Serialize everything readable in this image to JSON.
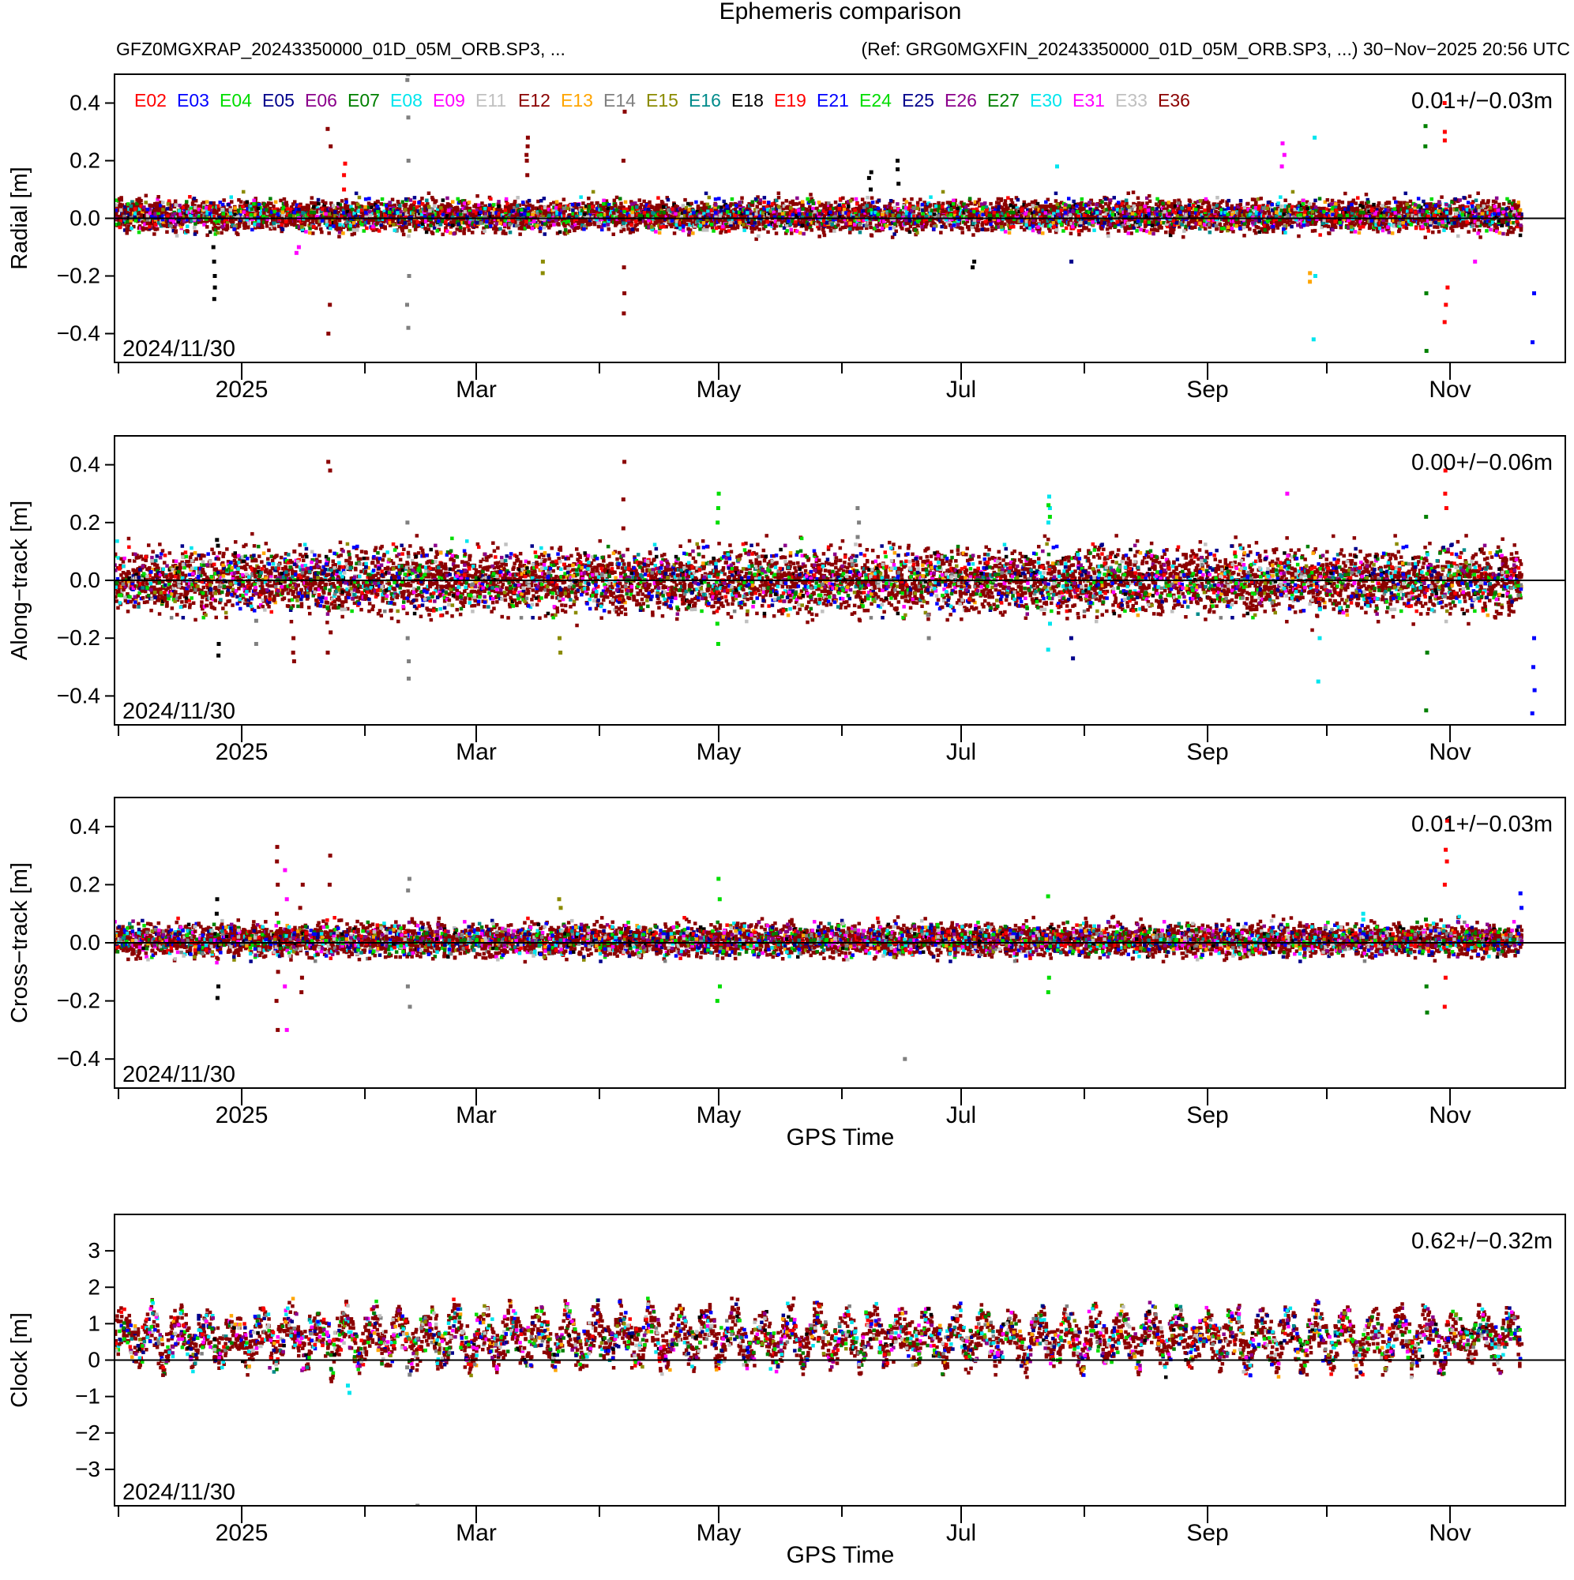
{
  "title": "Ephemeris comparison",
  "subtitle_left": "GFZ0MGXRAP_20243350000_01D_05M_ORB.SP3, ...",
  "subtitle_right": "(Ref: GRG0MGXFIN_20243350000_01D_05M_ORB.SP3, ...) 30−Nov−2025 20:56 UTC",
  "start_label": "2024/11/30",
  "legend": [
    {
      "name": "E02",
      "color": "#ff0000"
    },
    {
      "name": "E03",
      "color": "#0000ff"
    },
    {
      "name": "E04",
      "color": "#00dd00"
    },
    {
      "name": "E05",
      "color": "#00008b"
    },
    {
      "name": "E06",
      "color": "#8b008b"
    },
    {
      "name": "E07",
      "color": "#008000"
    },
    {
      "name": "E08",
      "color": "#00e5ee"
    },
    {
      "name": "E09",
      "color": "#ff00ff"
    },
    {
      "name": "E11",
      "color": "#c0c0c0"
    },
    {
      "name": "E12",
      "color": "#8b0000"
    },
    {
      "name": "E13",
      "color": "#ffa500"
    },
    {
      "name": "E14",
      "color": "#808080"
    },
    {
      "name": "E15",
      "color": "#8b8b00"
    },
    {
      "name": "E16",
      "color": "#008b8b"
    },
    {
      "name": "E18",
      "color": "#000000"
    },
    {
      "name": "E19",
      "color": "#ff0000"
    },
    {
      "name": "E21",
      "color": "#0000ff"
    },
    {
      "name": "E24",
      "color": "#00dd00"
    },
    {
      "name": "E25",
      "color": "#00008b"
    },
    {
      "name": "E26",
      "color": "#8b008b"
    },
    {
      "name": "E27",
      "color": "#008000"
    },
    {
      "name": "E30",
      "color": "#00e5ee"
    },
    {
      "name": "E31",
      "color": "#ff00ff"
    },
    {
      "name": "E33",
      "color": "#c0c0c0"
    },
    {
      "name": "E36",
      "color": "#8b0000"
    }
  ],
  "chart_data": [
    {
      "type": "scatter",
      "ylabel": "Radial [m]",
      "xlabel": "",
      "ylim": [
        -0.5,
        0.5
      ],
      "yticks": [
        -0.4,
        -0.2,
        0.0,
        0.2,
        0.4
      ],
      "ytick_labels": [
        "−0.4",
        "−0.2",
        "0.0",
        "0.2",
        "0.4"
      ],
      "xlim": [
        "2024-11-30",
        "2025-11-30"
      ],
      "xticks": [
        "2025",
        "Mar",
        "May",
        "Jul",
        "Sep",
        "Nov"
      ],
      "stats": "0.01+/−0.03m",
      "band_mean": 0.01,
      "band_std": 0.03,
      "spikes": [
        {
          "date": "2024-12-25",
          "values": [
            -0.28,
            -0.24,
            -0.2,
            -0.15,
            -0.1
          ],
          "series": "E18"
        },
        {
          "date": "2025-01-15",
          "values": [
            -0.12,
            -0.1,
            0.0
          ],
          "series": "E09"
        },
        {
          "date": "2025-01-23",
          "values": [
            -0.4,
            -0.3,
            0.31,
            0.25
          ],
          "series": "E12"
        },
        {
          "date": "2025-01-27",
          "values": [
            0.19,
            0.15,
            0.1
          ],
          "series": "E02"
        },
        {
          "date": "2025-02-12",
          "values": [
            0.5,
            0.48,
            0.35,
            0.2,
            -0.2,
            -0.3,
            -0.38
          ],
          "series": "E14"
        },
        {
          "date": "2025-03-14",
          "values": [
            0.28,
            0.25,
            0.22,
            0.2,
            0.15
          ],
          "series": "E12"
        },
        {
          "date": "2025-03-18",
          "values": [
            -0.15,
            -0.19
          ],
          "series": "E15"
        },
        {
          "date": "2025-04-07",
          "values": [
            0.37,
            0.2,
            -0.17,
            -0.26,
            -0.33
          ],
          "series": "E12"
        },
        {
          "date": "2025-06-08",
          "values": [
            0.16,
            0.14,
            0.1
          ],
          "series": "E18"
        },
        {
          "date": "2025-06-15",
          "values": [
            0.2,
            0.17,
            0.12
          ],
          "series": "E18"
        },
        {
          "date": "2025-07-04",
          "values": [
            -0.17,
            -0.15
          ],
          "series": "E18"
        },
        {
          "date": "2025-07-25",
          "values": [
            0.18
          ],
          "series": "E08"
        },
        {
          "date": "2025-07-29",
          "values": [
            -0.15
          ],
          "series": "E25"
        },
        {
          "date": "2025-09-20",
          "values": [
            0.26,
            0.22,
            0.18
          ],
          "series": "E09"
        },
        {
          "date": "2025-09-28",
          "values": [
            0.28,
            -0.2,
            -0.42
          ],
          "series": "E08"
        },
        {
          "date": "2025-09-27",
          "values": [
            -0.22,
            -0.19
          ],
          "series": "E13"
        },
        {
          "date": "2025-10-26",
          "values": [
            0.32,
            0.25,
            -0.26,
            -0.46
          ],
          "series": "E07"
        },
        {
          "date": "2025-10-31",
          "values": [
            0.4,
            0.3,
            0.27,
            -0.24,
            -0.3,
            -0.36
          ],
          "series": "E02"
        },
        {
          "date": "2025-11-07",
          "values": [
            -0.15
          ],
          "series": "E09"
        },
        {
          "date": "2025-11-22",
          "values": [
            -0.26,
            -0.43
          ],
          "series": "E03"
        }
      ]
    },
    {
      "type": "scatter",
      "ylabel": "Along−track [m]",
      "xlabel": "",
      "ylim": [
        -0.5,
        0.5
      ],
      "yticks": [
        -0.4,
        -0.2,
        0.0,
        0.2,
        0.4
      ],
      "ytick_labels": [
        "−0.4",
        "−0.2",
        "0.0",
        "0.2",
        "0.4"
      ],
      "xlim": [
        "2024-11-30",
        "2025-11-30"
      ],
      "xticks": [
        "2025",
        "Mar",
        "May",
        "Jul",
        "Sep",
        "Nov"
      ],
      "stats": "0.00+/−0.06m",
      "band_mean": 0.0,
      "band_std": 0.06,
      "spikes": [
        {
          "date": "2024-12-26",
          "values": [
            0.14,
            0.12,
            -0.22,
            -0.26
          ],
          "series": "E18"
        },
        {
          "date": "2025-01-05",
          "values": [
            -0.22,
            -0.14
          ],
          "series": "E14"
        },
        {
          "date": "2025-01-14",
          "values": [
            -0.2,
            -0.25,
            -0.28,
            0.1
          ],
          "series": "E12"
        },
        {
          "date": "2025-01-23",
          "values": [
            0.41,
            0.38,
            -0.25,
            -0.18
          ],
          "series": "E12"
        },
        {
          "date": "2025-02-12",
          "values": [
            0.2,
            -0.2,
            -0.28,
            -0.34
          ],
          "series": "E14"
        },
        {
          "date": "2025-03-22",
          "values": [
            -0.2,
            -0.25
          ],
          "series": "E15"
        },
        {
          "date": "2025-04-07",
          "values": [
            0.41,
            0.28,
            0.18
          ],
          "series": "E12"
        },
        {
          "date": "2025-05-01",
          "values": [
            0.3,
            0.25,
            0.2,
            -0.15,
            -0.22
          ],
          "series": "E04"
        },
        {
          "date": "2025-06-05",
          "values": [
            0.25,
            0.2,
            0.15
          ],
          "series": "E14"
        },
        {
          "date": "2025-06-23",
          "values": [
            -0.12,
            -0.2
          ],
          "series": "E14"
        },
        {
          "date": "2025-07-23",
          "values": [
            0.29,
            0.25,
            0.2,
            -0.15,
            -0.24
          ],
          "series": "E08"
        },
        {
          "date": "2025-07-23",
          "values": [
            0.26,
            0.22
          ],
          "series": "E04"
        },
        {
          "date": "2025-07-29",
          "values": [
            -0.2,
            -0.27
          ],
          "series": "E25"
        },
        {
          "date": "2025-09-21",
          "values": [
            0.3
          ],
          "series": "E09"
        },
        {
          "date": "2025-09-29",
          "values": [
            -0.1,
            -0.2,
            -0.35
          ],
          "series": "E08"
        },
        {
          "date": "2025-10-26",
          "values": [
            0.22,
            -0.25,
            -0.45
          ],
          "series": "E07"
        },
        {
          "date": "2025-10-31",
          "values": [
            0.38,
            0.3,
            0.25
          ],
          "series": "E02"
        },
        {
          "date": "2025-11-22",
          "values": [
            -0.2,
            -0.3,
            -0.38,
            -0.46
          ],
          "series": "E03"
        }
      ]
    },
    {
      "type": "scatter",
      "ylabel": "Cross−track [m]",
      "xlabel": "GPS Time",
      "ylim": [
        -0.5,
        0.5
      ],
      "yticks": [
        -0.4,
        -0.2,
        0.0,
        0.2,
        0.4
      ],
      "ytick_labels": [
        "−0.4",
        "−0.2",
        "0.0",
        "0.2",
        "0.4"
      ],
      "xlim": [
        "2024-11-30",
        "2025-11-30"
      ],
      "xticks": [
        "2025",
        "Mar",
        "May",
        "Jul",
        "Sep",
        "Nov"
      ],
      "stats": "0.01+/−0.03m",
      "band_mean": 0.01,
      "band_std": 0.03,
      "spikes": [
        {
          "date": "2024-12-26",
          "values": [
            0.15,
            0.1,
            -0.15,
            -0.19
          ],
          "series": "E18"
        },
        {
          "date": "2025-01-10",
          "values": [
            0.33,
            0.28,
            0.2,
            0.1,
            -0.1,
            -0.2,
            -0.3
          ],
          "series": "E12"
        },
        {
          "date": "2025-01-12",
          "values": [
            0.25,
            0.15,
            -0.15,
            -0.3
          ],
          "series": "E09"
        },
        {
          "date": "2025-01-16",
          "values": [
            0.2,
            0.12,
            -0.12,
            -0.17
          ],
          "series": "E12"
        },
        {
          "date": "2025-01-23",
          "values": [
            0.3,
            0.2
          ],
          "series": "E12"
        },
        {
          "date": "2025-02-12",
          "values": [
            0.22,
            0.18,
            -0.15,
            -0.22
          ],
          "series": "E14"
        },
        {
          "date": "2025-03-22",
          "values": [
            0.15,
            0.12
          ],
          "series": "E15"
        },
        {
          "date": "2025-05-01",
          "values": [
            0.22,
            0.15,
            -0.15,
            -0.2
          ],
          "series": "E04"
        },
        {
          "date": "2025-06-17",
          "values": [
            -0.4
          ],
          "series": "E14"
        },
        {
          "date": "2025-07-23",
          "values": [
            0.16,
            -0.12,
            -0.17
          ],
          "series": "E04"
        },
        {
          "date": "2025-10-10",
          "values": [
            0.1,
            0.08
          ],
          "series": "E08"
        },
        {
          "date": "2025-10-26",
          "values": [
            0.08,
            -0.15,
            -0.24
          ],
          "series": "E07"
        },
        {
          "date": "2025-10-31",
          "values": [
            0.42,
            0.32,
            0.28,
            0.2,
            -0.12,
            -0.22
          ],
          "series": "E02"
        },
        {
          "date": "2025-11-19",
          "values": [
            0.17,
            0.12
          ],
          "series": "E03"
        }
      ]
    },
    {
      "type": "scatter",
      "ylabel": "Clock [m]",
      "xlabel": "GPS Time",
      "ylim": [
        -4.0,
        4.0
      ],
      "yticks": [
        -3,
        -2,
        -1,
        0,
        1,
        2,
        3
      ],
      "ytick_labels": [
        "−3",
        "−2",
        "−1",
        "0",
        "1",
        "2",
        "3"
      ],
      "xlim": [
        "2024-11-30",
        "2025-11-30"
      ],
      "xticks": [
        "2025",
        "Mar",
        "May",
        "Jul",
        "Sep",
        "Nov"
      ],
      "stats": "0.62+/−0.32m",
      "band_mean": 0.62,
      "band_std": 0.32,
      "spikes": [
        {
          "date": "2025-01-28",
          "values": [
            -0.7,
            -0.9
          ],
          "series": "E08"
        },
        {
          "date": "2025-02-12",
          "values": [
            -0.2,
            -0.4
          ],
          "series": "E14"
        },
        {
          "date": "2025-02-14",
          "values": [
            -4.0
          ],
          "series": "E14"
        }
      ]
    }
  ]
}
